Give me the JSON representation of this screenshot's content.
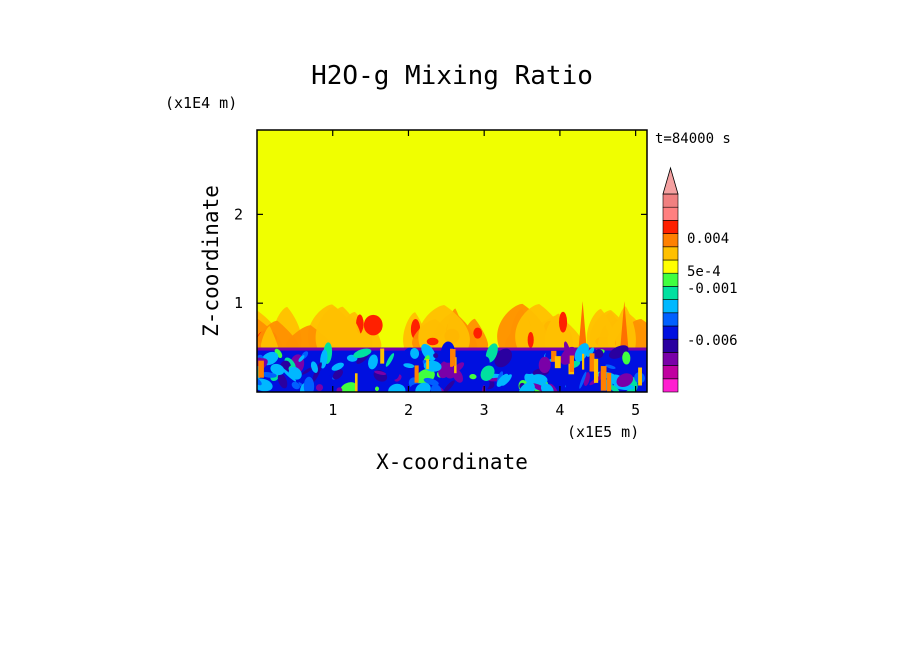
{
  "chart_data": {
    "type": "heatmap",
    "title": "H2O-g Mixing Ratio",
    "xlabel": "X-coordinate",
    "ylabel": "Z-coordinate",
    "x_unit": "(x1E5 m)",
    "y_unit": "(x1E4 m)",
    "time_label": "t=84000 s",
    "xlim": [
      0.0,
      5.15
    ],
    "ylim": [
      0.0,
      2.95
    ],
    "x_ticks": [
      1,
      2,
      3,
      4,
      5
    ],
    "y_ticks": [
      1,
      2
    ],
    "colorbar": {
      "colors": [
        "#ff1fd0",
        "#c000a0",
        "#7a00a8",
        "#2a00a0",
        "#0010e0",
        "#0060ff",
        "#00b8ff",
        "#00e0a0",
        "#40ff40",
        "#ffff00",
        "#ffc000",
        "#ff8000",
        "#ff2000",
        "#ff8080",
        "#f08080"
      ],
      "tick_labels": [
        "0.004",
        "5e-4",
        "-0.001",
        "-0.006"
      ],
      "tick_values": [
        0.004,
        0.0005,
        -0.001,
        -0.006
      ],
      "extend": "max"
    },
    "layers": {
      "background": "#f0ff00",
      "plume_top_z": 1.0,
      "boundary_layer_top_z": 0.5
    }
  }
}
